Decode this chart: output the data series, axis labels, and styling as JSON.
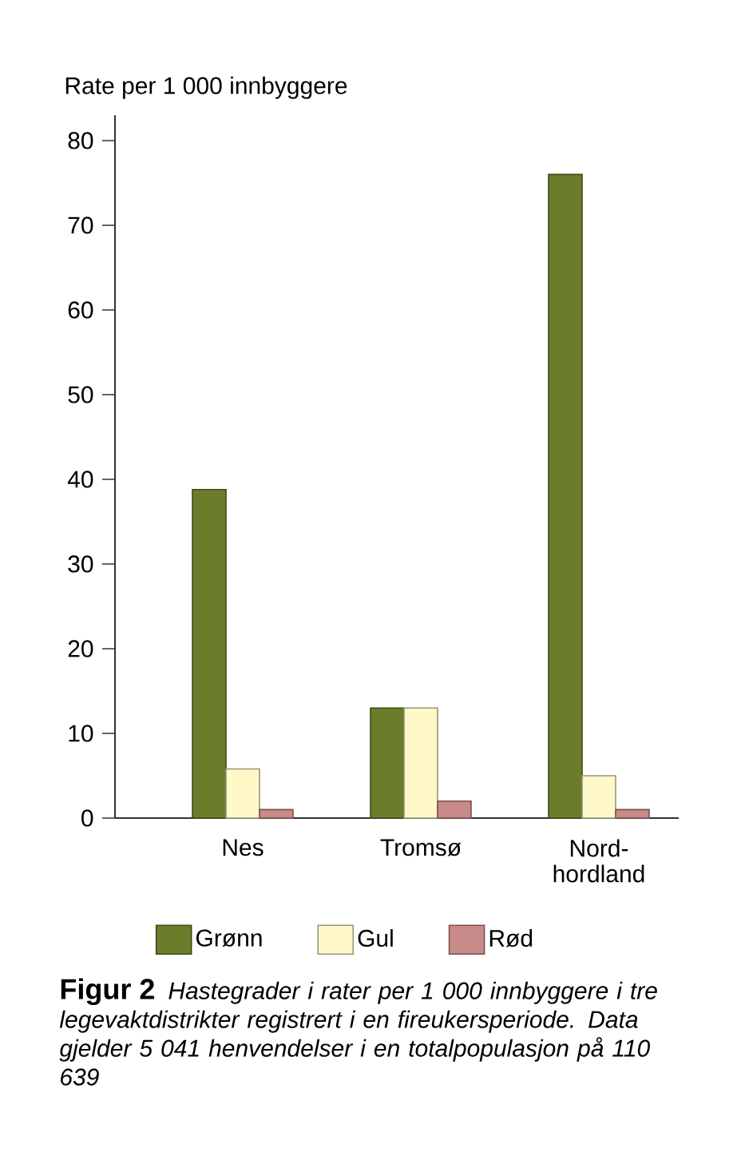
{
  "chart_data": {
    "type": "bar",
    "title": "Figur 2",
    "ylabel": "Rate per 1 000 innbyggere",
    "annotations": [
      "Hastegrader i rater per 1 000 innbyggere i tre legevaktdistrikter registrert i en fireukersperiode. Data gjelder 5 041 henvendelser i en totalpopulasjon på 110 639"
    ],
    "categories": [
      "Nes",
      "Tromsø",
      "Nord-hordland"
    ],
    "series": [
      {
        "name": "Grønn",
        "color": "#6b7d2a",
        "values": [
          38.8,
          13,
          76
        ]
      },
      {
        "name": "Gul",
        "color": "#fff8c8",
        "values": [
          5.8,
          13,
          5
        ]
      },
      {
        "name": "Rød",
        "color": "#c98a8a",
        "values": [
          1,
          2,
          1
        ]
      }
    ],
    "ylim": [
      0,
      83
    ],
    "yticks": [
      0,
      10,
      20,
      30,
      40,
      50,
      60,
      70,
      80
    ],
    "legend": "bottom"
  }
}
